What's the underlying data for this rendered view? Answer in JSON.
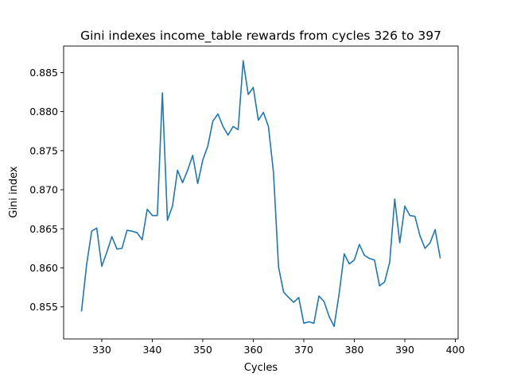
{
  "chart_data": {
    "type": "line",
    "title": "Gini indexes income_table rewards from cycles 326 to 397",
    "xlabel": "Cycles",
    "ylabel": "Gini index",
    "xlim": [
      322.45,
      400.55
    ],
    "ylim": [
      0.8509,
      0.8884
    ],
    "xticks": [
      330,
      340,
      350,
      360,
      370,
      380,
      390,
      400
    ],
    "yticks": [
      0.855,
      0.86,
      0.865,
      0.87,
      0.875,
      0.88,
      0.885
    ],
    "ytick_labels": [
      "0.855",
      "0.860",
      "0.865",
      "0.870",
      "0.875",
      "0.880",
      "0.885"
    ],
    "grid": false,
    "line_color": "#1f77b4",
    "series": [
      {
        "x": [
          326,
          327,
          328,
          329,
          330,
          331,
          332,
          333,
          334,
          335,
          336,
          337,
          338,
          339,
          340,
          341,
          342,
          343,
          344,
          345,
          346,
          347,
          348,
          349,
          350,
          351,
          352,
          353,
          354,
          355,
          356,
          357,
          358,
          359,
          360,
          361,
          362,
          363,
          364,
          365,
          366,
          367,
          368,
          369,
          370,
          371,
          372,
          373,
          374,
          375,
          376,
          377,
          378,
          379,
          380,
          381,
          382,
          383,
          384,
          385,
          386,
          387,
          388,
          389,
          390,
          391,
          392,
          393,
          394,
          395,
          396,
          397
        ],
        "values": [
          0.8545,
          0.8604,
          0.8647,
          0.8651,
          0.8602,
          0.862,
          0.864,
          0.8624,
          0.8625,
          0.8648,
          0.8647,
          0.8645,
          0.8636,
          0.8675,
          0.8667,
          0.8667,
          0.8824,
          0.8661,
          0.8679,
          0.8725,
          0.8709,
          0.8725,
          0.8744,
          0.8708,
          0.8738,
          0.8756,
          0.8788,
          0.8797,
          0.8781,
          0.877,
          0.8781,
          0.8777,
          0.8865,
          0.8822,
          0.8831,
          0.8789,
          0.8799,
          0.8781,
          0.8722,
          0.8601,
          0.8569,
          0.8562,
          0.8556,
          0.8562,
          0.8529,
          0.8531,
          0.8529,
          0.8564,
          0.8557,
          0.8538,
          0.8525,
          0.8567,
          0.8618,
          0.8605,
          0.861,
          0.863,
          0.8616,
          0.8612,
          0.861,
          0.8577,
          0.8582,
          0.8607,
          0.8688,
          0.8632,
          0.8679,
          0.8667,
          0.8666,
          0.8641,
          0.8625,
          0.8632,
          0.8649,
          0.8613
        ]
      }
    ]
  }
}
